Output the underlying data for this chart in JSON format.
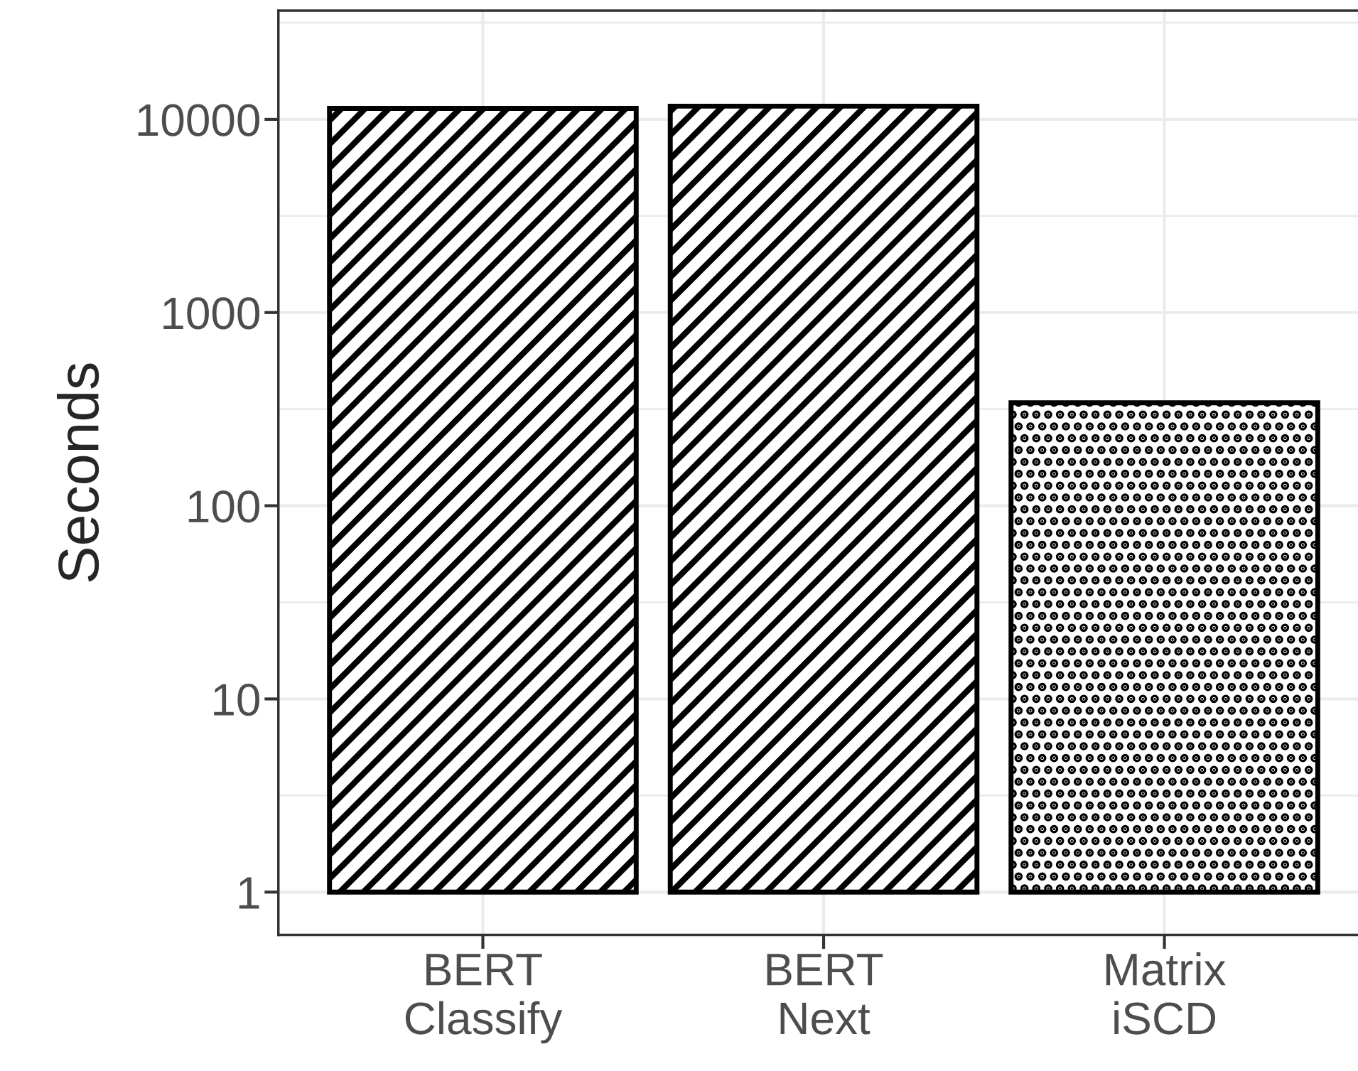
{
  "chart_data": {
    "type": "bar",
    "ylabel": "Seconds",
    "log": true,
    "categories": [
      "BERT\nClassify",
      "BERT\nNext",
      "Matrix\niSCD"
    ],
    "values": [
      11400,
      11700,
      340
    ],
    "base": [
      1,
      1,
      1
    ],
    "colors": [
      "#000000",
      "#000000",
      "#000000"
    ],
    "ylim": [
      0.6,
      36500
    ],
    "yticks": [
      1,
      10,
      100,
      1000,
      10000
    ],
    "grid": true
  }
}
